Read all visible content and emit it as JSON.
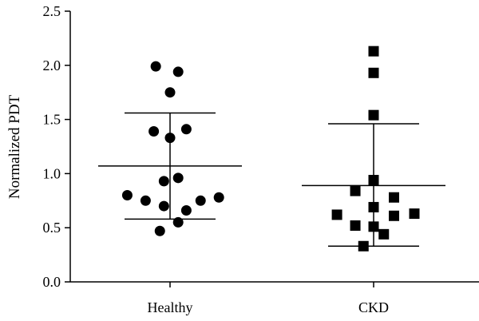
{
  "chart_data": {
    "type": "scatter",
    "title": "",
    "xlabel": "",
    "ylabel": "Normalized PDT",
    "ylim": [
      0,
      2.5
    ],
    "yticks": [
      0.0,
      0.5,
      1.0,
      1.5,
      2.0,
      2.5
    ],
    "ytick_labels": [
      "0.0",
      "0.5",
      "1.0",
      "1.5",
      "2.0",
      "2.5"
    ],
    "grid": false,
    "categories": [
      "Healthy",
      "CKD"
    ],
    "series": [
      {
        "category": "Healthy",
        "marker": "circle",
        "color": "#000000",
        "points": [
          {
            "offset": -0.07,
            "y": 1.99
          },
          {
            "offset": 0.04,
            "y": 1.94
          },
          {
            "offset": 0.0,
            "y": 1.75
          },
          {
            "offset": -0.08,
            "y": 1.39
          },
          {
            "offset": 0.08,
            "y": 1.41
          },
          {
            "offset": 0.0,
            "y": 1.33
          },
          {
            "offset": 0.04,
            "y": 0.96
          },
          {
            "offset": -0.03,
            "y": 0.93
          },
          {
            "offset": -0.21,
            "y": 0.8
          },
          {
            "offset": -0.12,
            "y": 0.75
          },
          {
            "offset": 0.15,
            "y": 0.75
          },
          {
            "offset": 0.24,
            "y": 0.78
          },
          {
            "offset": -0.03,
            "y": 0.7
          },
          {
            "offset": 0.08,
            "y": 0.66
          },
          {
            "offset": 0.04,
            "y": 0.55
          },
          {
            "offset": -0.05,
            "y": 0.47
          }
        ],
        "mean": 1.07,
        "sd_upper": 1.56,
        "sd_lower": 0.58
      },
      {
        "category": "CKD",
        "marker": "square",
        "color": "#000000",
        "points": [
          {
            "offset": 0.0,
            "y": 2.13
          },
          {
            "offset": 0.0,
            "y": 1.93
          },
          {
            "offset": 0.0,
            "y": 1.54
          },
          {
            "offset": -0.09,
            "y": 0.84
          },
          {
            "offset": 0.0,
            "y": 0.94
          },
          {
            "offset": 0.1,
            "y": 0.78
          },
          {
            "offset": 0.0,
            "y": 0.69
          },
          {
            "offset": -0.18,
            "y": 0.62
          },
          {
            "offset": 0.1,
            "y": 0.61
          },
          {
            "offset": 0.2,
            "y": 0.63
          },
          {
            "offset": -0.09,
            "y": 0.52
          },
          {
            "offset": 0.0,
            "y": 0.51
          },
          {
            "offset": 0.05,
            "y": 0.44
          },
          {
            "offset": -0.05,
            "y": 0.33
          }
        ],
        "mean": 0.89,
        "sd_upper": 1.46,
        "sd_lower": 0.33
      }
    ]
  }
}
